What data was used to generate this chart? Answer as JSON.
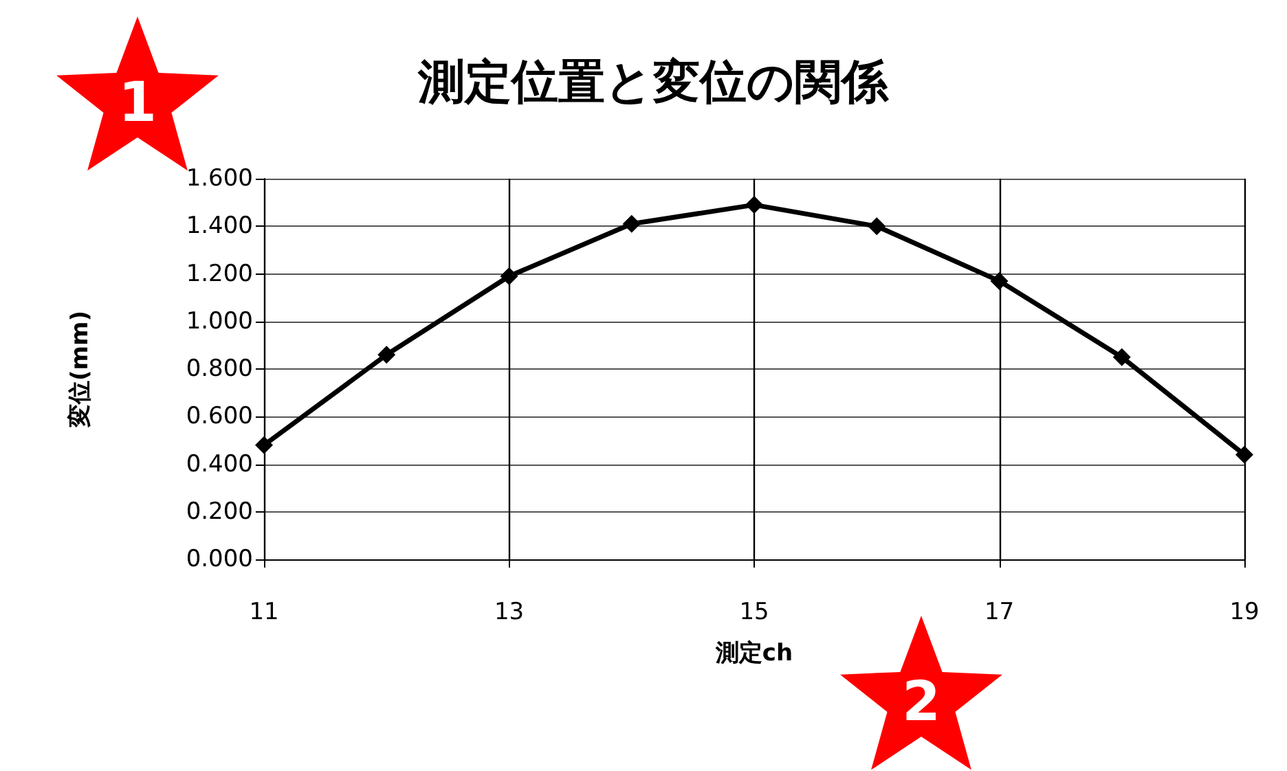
{
  "chart_data": {
    "type": "line",
    "title": "測定位置と変位の関係",
    "xlabel": "測定ch",
    "ylabel": "変位(mm)",
    "x": [
      11,
      12,
      13,
      14,
      15,
      16,
      17,
      18,
      19
    ],
    "series": [
      {
        "color": "#000000",
        "values": [
          0.48,
          0.86,
          1.19,
          1.41,
          1.49,
          1.4,
          1.17,
          0.85,
          0.44
        ]
      }
    ],
    "xlim": [
      11,
      19
    ],
    "xticks": [
      11,
      13,
      15,
      17,
      19
    ],
    "ylim": [
      0,
      1.6
    ],
    "yticks": [
      {
        "value": 0,
        "label": "0.000"
      },
      {
        "value": 0.2,
        "label": "0.200"
      },
      {
        "value": 0.4,
        "label": "0.400"
      },
      {
        "value": 0.6,
        "label": "0.600"
      },
      {
        "value": 0.8,
        "label": "0.800"
      },
      {
        "value": 1.0,
        "label": "1.000"
      },
      {
        "value": 1.2,
        "label": "1.200"
      },
      {
        "value": 1.4,
        "label": "1.400"
      },
      {
        "value": 1.6,
        "label": "1.600"
      }
    ],
    "grid": true,
    "marker": "diamond",
    "line_style": "solid",
    "annotations": [
      "1",
      "2"
    ]
  }
}
